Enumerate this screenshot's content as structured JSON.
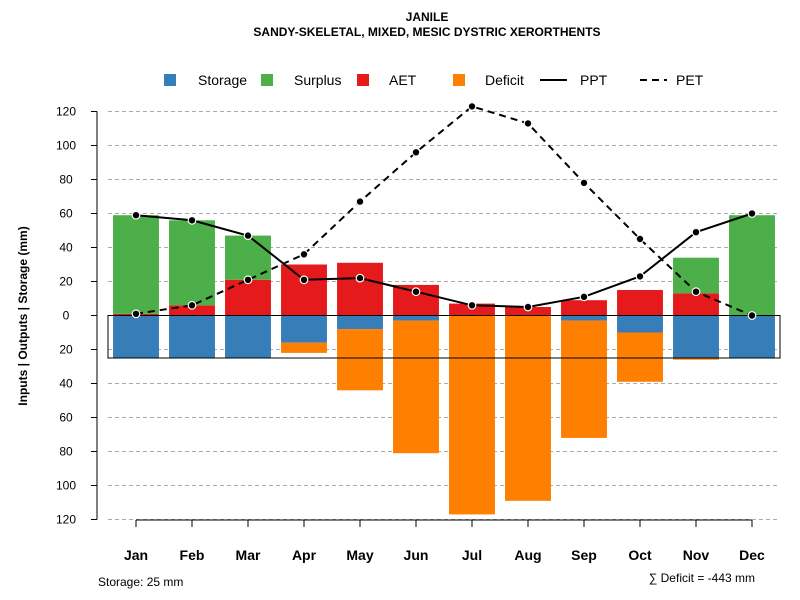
{
  "chart_data": {
    "type": "bar",
    "title": "JANILE",
    "subtitle": "SANDY-SKELETAL, MIXED, MESIC DYSTRIC XERORTHENTS",
    "ylabel": "Inputs | Outputs | Storage    (mm)",
    "ylim": [
      -120,
      130
    ],
    "yticks": [
      120,
      100,
      80,
      60,
      40,
      20,
      0,
      -20,
      -40,
      -60,
      -80,
      -100,
      -120
    ],
    "ytick_labels": [
      "120",
      "100",
      "80",
      "60",
      "40",
      "20",
      "0",
      "20",
      "40",
      "60",
      "80",
      "100",
      "120"
    ],
    "grid": true,
    "legend_position": "top",
    "categories": [
      "Jan",
      "Feb",
      "Mar",
      "Apr",
      "May",
      "Jun",
      "Jul",
      "Aug",
      "Sep",
      "Oct",
      "Nov",
      "Dec"
    ],
    "colors": {
      "storage": "#377EB8",
      "surplus": "#4DAF4A",
      "aet": "#E41A1C",
      "deficit": "#FF7F00",
      "line": "#000000",
      "grid": "#aaaaaa"
    },
    "legend": [
      {
        "key": "storage",
        "label": "Storage",
        "kind": "box"
      },
      {
        "key": "surplus",
        "label": "Surplus",
        "kind": "box"
      },
      {
        "key": "aet",
        "label": "AET",
        "kind": "box"
      },
      {
        "key": "deficit",
        "label": "Deficit",
        "kind": "box"
      },
      {
        "key": "ppt",
        "label": "PPT",
        "kind": "solid"
      },
      {
        "key": "pet",
        "label": "PET",
        "kind": "dashed"
      }
    ],
    "series": [
      {
        "name": "AET",
        "key": "aet",
        "values": [
          1,
          6,
          21,
          30,
          31,
          18,
          7,
          5,
          9,
          15,
          13,
          0
        ]
      },
      {
        "name": "Surplus",
        "key": "surplus",
        "values": [
          58,
          50,
          26,
          0,
          0,
          0,
          0,
          0,
          0,
          0,
          21,
          59
        ]
      },
      {
        "name": "Storage",
        "key": "storage",
        "values": [
          -25,
          -25,
          -25,
          -16,
          -8,
          -3,
          0,
          0,
          -3,
          -10,
          -25,
          -25
        ]
      },
      {
        "name": "Deficit",
        "key": "deficit",
        "values": [
          0,
          0,
          0,
          -6,
          -36,
          -78,
          -117,
          -109,
          -69,
          -29,
          -1,
          0
        ]
      },
      {
        "name": "PPT",
        "key": "ppt",
        "values": [
          59,
          56,
          47,
          21,
          22,
          14,
          6,
          5,
          11,
          23,
          49,
          60
        ]
      },
      {
        "name": "PET",
        "key": "pet",
        "values": [
          1,
          6,
          21,
          36,
          67,
          96,
          123,
          113,
          78,
          45,
          14,
          0
        ]
      }
    ],
    "storage_capacity": -25,
    "storage_note": "Storage: 25 mm",
    "deficit_note": "∑ Deficit = -443 mm"
  }
}
